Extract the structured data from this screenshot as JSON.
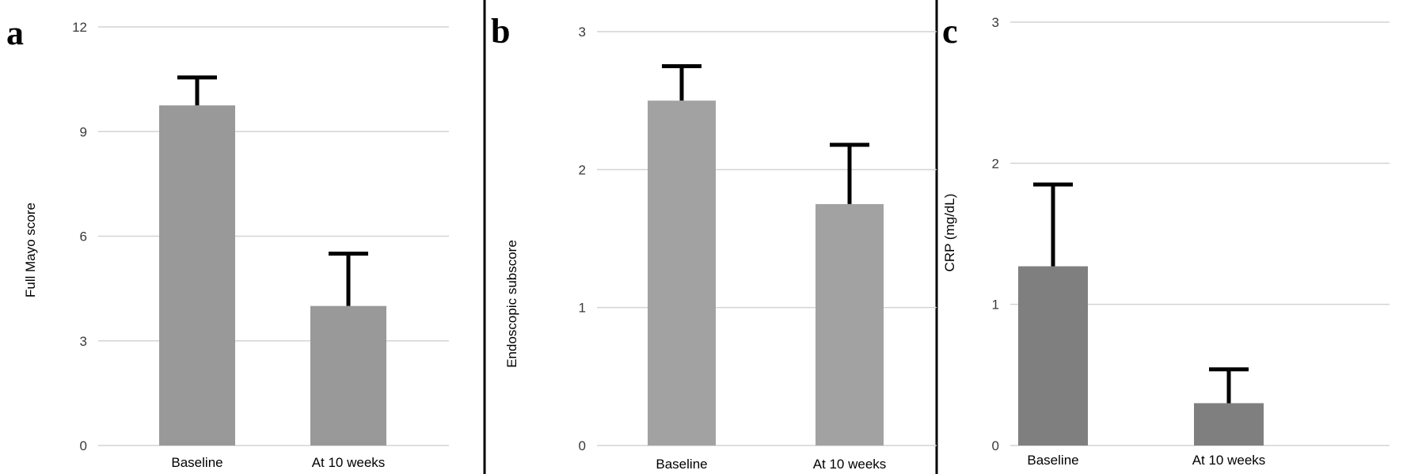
{
  "chart_data": [
    {
      "type": "bar",
      "panel_label": "a",
      "categories": [
        "Baseline",
        "At 10 weeks"
      ],
      "values": [
        9.75,
        4.0
      ],
      "error_upper": [
        0.8,
        1.5
      ],
      "ylabel": "Full Mayo score",
      "ylim": [
        0,
        12
      ],
      "yticks": [
        0,
        3,
        6,
        9,
        12
      ],
      "bar_color": "#999999",
      "grid": true
    },
    {
      "type": "bar",
      "panel_label": "b",
      "categories": [
        "Baseline",
        "At 10 weeks"
      ],
      "values": [
        2.5,
        1.75
      ],
      "error_upper": [
        0.25,
        0.43
      ],
      "ylabel": "Endoscopic subscore",
      "ylim": [
        0,
        3
      ],
      "yticks": [
        0,
        1,
        2,
        3
      ],
      "bar_color": "#a2a2a2",
      "grid": true
    },
    {
      "type": "bar",
      "panel_label": "c",
      "categories": [
        "Baseline",
        "At 10 weeks"
      ],
      "values": [
        1.27,
        0.3
      ],
      "error_upper": [
        0.58,
        0.24
      ],
      "ylabel": "CRP (mg/dL)",
      "ylim": [
        0,
        3
      ],
      "yticks": [
        0,
        1,
        2,
        3
      ],
      "bar_color": "#7f7f7f",
      "grid": true
    }
  ]
}
